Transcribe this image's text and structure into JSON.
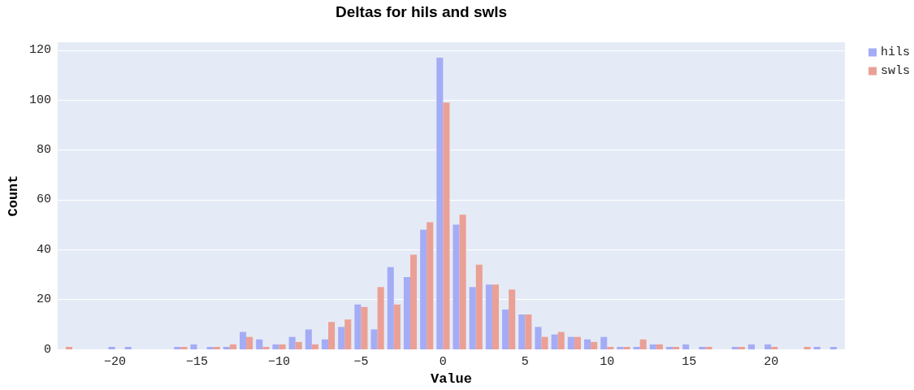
{
  "chart_data": {
    "type": "histogram",
    "title": "Deltas for hils and swls",
    "xlabel": "Value",
    "ylabel": "Count",
    "bins": [
      -23.5,
      -22.5,
      -21.5,
      -20.5,
      -19.5,
      -18.5,
      -17.5,
      -16.5,
      -15.5,
      -14.5,
      -13.5,
      -12.5,
      -11.5,
      -10.5,
      -9.5,
      -8.5,
      -7.5,
      -6.5,
      -5.5,
      -4.5,
      -3.5,
      -2.5,
      -1.5,
      -0.5,
      0.5,
      1.5,
      2.5,
      3.5,
      4.5,
      5.5,
      6.5,
      7.5,
      8.5,
      9.5,
      10.5,
      11.5,
      12.5,
      13.5,
      14.5,
      15.5,
      16.5,
      17.5,
      18.5,
      19.5,
      20.5,
      21.5,
      22.5,
      23.5,
      24.5
    ],
    "series": [
      {
        "name": "hils",
        "color": "#a4acf6",
        "values": [
          0,
          0,
          0,
          1,
          1,
          0,
          0,
          1,
          2,
          1,
          1,
          7,
          4,
          2,
          5,
          8,
          4,
          9,
          18,
          8,
          33,
          29,
          48,
          117,
          50,
          25,
          26,
          16,
          14,
          9,
          6,
          5,
          4,
          5,
          1,
          1,
          2,
          1,
          2,
          1,
          0,
          1,
          2,
          2,
          0,
          0,
          1,
          1
        ]
      },
      {
        "name": "swls",
        "color": "#eba095",
        "values": [
          1,
          0,
          0,
          0,
          0,
          0,
          0,
          1,
          0,
          1,
          2,
          5,
          1,
          2,
          3,
          2,
          11,
          12,
          17,
          25,
          18,
          38,
          51,
          99,
          54,
          34,
          26,
          24,
          14,
          5,
          7,
          5,
          3,
          1,
          1,
          4,
          2,
          1,
          0,
          1,
          0,
          1,
          0,
          1,
          0,
          1,
          0,
          0
        ]
      }
    ],
    "xlim": [
      -23.5,
      24.5
    ],
    "xticks": [
      -20,
      -15,
      -10,
      -5,
      0,
      5,
      10,
      15,
      20
    ],
    "ylim": [
      0,
      123.2
    ],
    "yticks": [
      0,
      20,
      40,
      60,
      80,
      100,
      120
    ],
    "grid": "y",
    "legend": "top right"
  }
}
